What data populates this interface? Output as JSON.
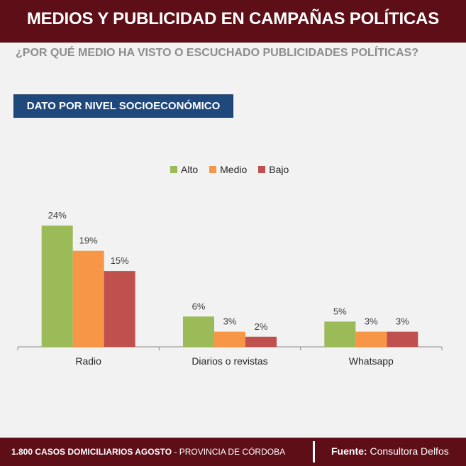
{
  "header": {
    "title": "MEDIOS Y PUBLICIDAD EN CAMPAÑAS POLÍTICAS"
  },
  "question": "¿POR QUÉ MEDIO HA VISTO O ESCUCHADO PUBLICIDADES POLÍTICAS?",
  "section_label": "DATO POR NIVEL SOCIOECONÓMICO",
  "footer": {
    "cases_bold": "1.800 CASOS DOMICILIARIOS AGOSTO",
    "cases_rest": " - PROVINCIA DE CÓRDOBA",
    "source_label": "Fuente:",
    "source_value": " Consultora Delfos"
  },
  "colors": {
    "header_bg": "#5e0e17",
    "badge_bg": "#1f497d"
  },
  "chart_data": {
    "type": "bar",
    "title": "",
    "xlabel": "",
    "ylabel": "",
    "ylim": [
      0,
      24
    ],
    "grid": false,
    "legend_position": "top-center",
    "categories": [
      "Radio",
      "Diarios o revistas",
      "Whatsapp"
    ],
    "series": [
      {
        "name": "Alto",
        "color": "#9bbb59",
        "values": [
          24,
          6,
          5
        ],
        "labels": [
          "24%",
          "6%",
          "5%"
        ]
      },
      {
        "name": "Medio",
        "color": "#f79646",
        "values": [
          19,
          3,
          3
        ],
        "labels": [
          "19%",
          "3%",
          "3%"
        ]
      },
      {
        "name": "Bajo",
        "color": "#c0504d",
        "values": [
          15,
          2,
          3
        ],
        "labels": [
          "15%",
          "2%",
          "3%"
        ]
      }
    ]
  }
}
